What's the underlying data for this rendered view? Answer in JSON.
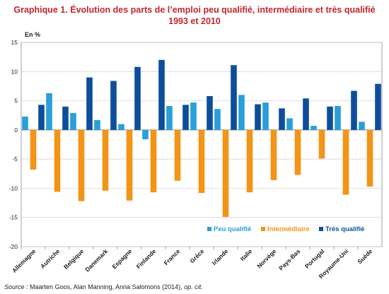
{
  "title_line1": "Graphique 1. Évolution des parts de l’emploi peu qualifié, intermédiaire et très qualifié",
  "title_line2": "1993 et 2010",
  "unit": "En %",
  "source_label": "Source :",
  "source_authors": "Maarten Goos, Alan Manning, Anna Salomons (2014),",
  "source_ref": "op. cit.",
  "colors": {
    "peu": "#2a9fd8",
    "inter": "#f39416",
    "tres": "#0d4e9c",
    "grid": "#cfcfcf",
    "axis": "#888888"
  },
  "chart_data": {
    "type": "bar",
    "title": "Graphique 1. Évolution des parts de l’emploi peu qualifié, intermédiaire et très qualifié 1993 et 2010",
    "ylabel": "En %",
    "ylim": [
      -20,
      15
    ],
    "yticks": [
      15,
      10,
      5,
      0,
      -5,
      -10,
      -15,
      -20
    ],
    "grid": true,
    "legend_position": "bottom-right",
    "categories": [
      "Allemagne",
      "Autriche",
      "Belgique",
      "Danemark",
      "Espagne",
      "Finlande",
      "France",
      "Grèce",
      "Irlande",
      "Italie",
      "Norvège",
      "Pays-Bas",
      "Portugal",
      "Royaume-Uni",
      "Suède"
    ],
    "series": [
      {
        "name": "Peu qualifié",
        "values": [
          2.3,
          6.3,
          2.9,
          1.7,
          1.0,
          -1.6,
          4.1,
          4.7,
          3.6,
          6.0,
          4.7,
          2.0,
          0.7,
          4.1,
          1.4
        ]
      },
      {
        "name": "Intermédiaire",
        "values": [
          -6.8,
          -10.6,
          -12.2,
          -10.4,
          -12.1,
          -10.7,
          -8.7,
          -10.8,
          -14.9,
          -10.7,
          -8.6,
          -7.7,
          -4.9,
          -11.1,
          -9.7
        ]
      },
      {
        "name": "Très qualifié",
        "values": [
          4.3,
          4.0,
          9.0,
          8.4,
          10.8,
          12.0,
          4.3,
          5.8,
          11.1,
          4.4,
          3.7,
          5.4,
          4.0,
          6.7,
          7.9
        ]
      }
    ]
  }
}
